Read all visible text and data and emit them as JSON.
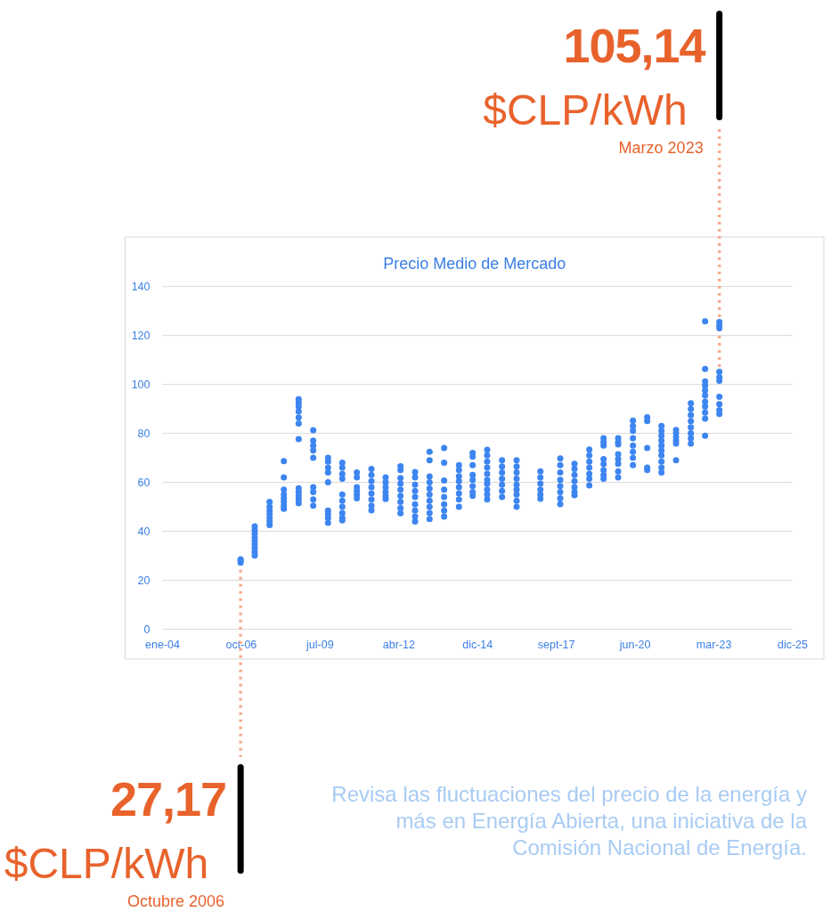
{
  "chart_data": {
    "type": "scatter",
    "title": "Precio Medio de Mercado",
    "color": "#3d85f0",
    "marker": "circle",
    "grid": "y",
    "xlim": [
      "2004-01-14",
      "2025-12-09"
    ],
    "xticks": [
      {
        "value": "2004-01-14",
        "label": "ene-04"
      },
      {
        "value": "2006-10-10",
        "label": "oct-06"
      },
      {
        "value": "2009-07-06",
        "label": "jul-09"
      },
      {
        "value": "2012-04-01",
        "label": "abr-12"
      },
      {
        "value": "2014-12-27",
        "label": "dic-14"
      },
      {
        "value": "2017-09-22",
        "label": "sept-17"
      },
      {
        "value": "2020-06-18",
        "label": "jun-20"
      },
      {
        "value": "2023-03-15",
        "label": "mar-23"
      },
      {
        "value": "2025-12-09",
        "label": "dic-25"
      }
    ],
    "ylim": [
      0,
      140
    ],
    "yticks": [
      0,
      20,
      40,
      60,
      80,
      100,
      120,
      140
    ],
    "x": [
      "2006-10-01",
      "2006-10-01",
      "2006-10-01",
      "2007-03-29",
      "2007-03-29",
      "2007-03-29",
      "2007-03-29",
      "2007-03-29",
      "2007-03-29",
      "2007-03-29",
      "2007-03-29",
      "2007-03-29",
      "2007-10-04",
      "2007-10-04",
      "2007-10-04",
      "2007-10-04",
      "2007-10-04",
      "2007-10-04",
      "2007-10-04",
      "2008-04-02",
      "2008-04-02",
      "2008-04-02",
      "2008-04-02",
      "2008-04-02",
      "2008-04-02",
      "2008-04-02",
      "2008-04-02",
      "2008-10-07",
      "2008-10-07",
      "2008-10-07",
      "2008-10-07",
      "2008-10-07",
      "2008-10-07",
      "2008-10-07",
      "2008-10-07",
      "2008-10-07",
      "2008-10-07",
      "2008-10-07",
      "2008-10-07",
      "2009-04-10",
      "2009-04-10",
      "2009-04-10",
      "2009-04-10",
      "2009-04-10",
      "2009-04-10",
      "2009-04-10",
      "2009-04-10",
      "2009-04-10",
      "2009-10-15",
      "2009-10-15",
      "2009-10-15",
      "2009-10-15",
      "2009-10-15",
      "2009-10-15",
      "2009-10-15",
      "2009-10-15",
      "2009-10-15",
      "2010-04-14",
      "2010-04-14",
      "2010-04-14",
      "2010-04-14",
      "2010-04-14",
      "2010-04-14",
      "2010-04-14",
      "2010-04-14",
      "2010-04-14",
      "2010-04-14",
      "2010-10-16",
      "2010-10-16",
      "2010-10-16",
      "2010-10-16",
      "2010-10-16",
      "2010-10-16",
      "2011-04-19",
      "2011-04-19",
      "2011-04-19",
      "2011-04-19",
      "2011-04-19",
      "2011-04-19",
      "2011-04-19",
      "2011-04-19",
      "2011-10-16",
      "2011-10-16",
      "2011-10-16",
      "2011-10-16",
      "2011-10-16",
      "2011-10-16",
      "2012-04-22",
      "2012-04-22",
      "2012-04-22",
      "2012-04-22",
      "2012-04-22",
      "2012-04-22",
      "2012-04-22",
      "2012-04-22",
      "2012-04-22",
      "2012-10-24",
      "2012-10-24",
      "2012-10-24",
      "2012-10-24",
      "2012-10-24",
      "2012-10-24",
      "2012-10-24",
      "2012-10-24",
      "2012-10-24",
      "2013-04-26",
      "2013-04-26",
      "2013-04-26",
      "2013-04-26",
      "2013-04-26",
      "2013-04-26",
      "2013-04-26",
      "2013-04-26",
      "2013-04-26",
      "2013-04-26",
      "2013-10-28",
      "2013-10-28",
      "2013-10-28",
      "2013-10-28",
      "2013-10-28",
      "2013-10-28",
      "2013-10-28",
      "2013-10-28",
      "2014-05-04",
      "2014-05-04",
      "2014-05-04",
      "2014-05-04",
      "2014-05-04",
      "2014-05-04",
      "2014-05-04",
      "2014-05-04",
      "2014-10-25",
      "2014-10-25",
      "2014-10-25",
      "2014-10-25",
      "2014-10-25",
      "2014-10-25",
      "2014-10-25",
      "2014-10-25",
      "2015-04-27",
      "2015-04-27",
      "2015-04-27",
      "2015-04-27",
      "2015-04-27",
      "2015-04-27",
      "2015-04-27",
      "2015-04-27",
      "2015-04-27",
      "2015-04-27",
      "2015-11-02",
      "2015-11-02",
      "2015-11-02",
      "2015-11-02",
      "2015-11-02",
      "2015-11-02",
      "2015-11-02",
      "2016-05-05",
      "2016-05-05",
      "2016-05-05",
      "2016-05-05",
      "2016-05-05",
      "2016-05-05",
      "2016-05-05",
      "2016-05-05",
      "2016-05-05",
      "2017-03-03",
      "2017-03-03",
      "2017-03-03",
      "2017-03-03",
      "2017-03-03",
      "2017-03-03",
      "2017-11-10",
      "2017-11-10",
      "2017-11-10",
      "2017-11-10",
      "2017-11-10",
      "2017-11-10",
      "2017-11-10",
      "2017-11-10",
      "2018-05-10",
      "2018-05-10",
      "2018-05-10",
      "2018-05-10",
      "2018-05-10",
      "2018-05-10",
      "2018-05-10",
      "2018-11-14",
      "2018-11-14",
      "2018-11-14",
      "2018-11-14",
      "2018-11-14",
      "2018-11-14",
      "2018-11-14",
      "2019-05-14",
      "2019-05-14",
      "2019-05-14",
      "2019-05-14",
      "2019-05-14",
      "2019-05-14",
      "2019-05-14",
      "2019-05-14",
      "2019-11-15",
      "2019-11-15",
      "2019-11-15",
      "2019-11-15",
      "2019-11-15",
      "2019-11-15",
      "2019-11-15",
      "2019-11-15",
      "2020-05-21",
      "2020-05-21",
      "2020-05-21",
      "2020-05-21",
      "2020-05-21",
      "2020-05-21",
      "2020-05-21",
      "2020-05-21",
      "2020-11-18",
      "2020-11-18",
      "2020-11-18",
      "2020-11-18",
      "2020-11-18",
      "2021-05-18",
      "2021-05-18",
      "2021-05-18",
      "2021-05-18",
      "2021-05-18",
      "2021-05-18",
      "2021-05-18",
      "2021-05-18",
      "2021-05-18",
      "2021-05-18",
      "2021-11-19",
      "2021-11-19",
      "2021-11-19",
      "2021-11-19",
      "2021-11-19",
      "2021-11-19",
      "2022-05-26",
      "2022-05-26",
      "2022-05-26",
      "2022-05-26",
      "2022-05-26",
      "2022-05-26",
      "2022-05-26",
      "2022-05-26",
      "2022-11-23",
      "2022-11-23",
      "2022-11-23",
      "2022-11-23",
      "2022-11-23",
      "2022-11-23",
      "2022-11-23",
      "2022-11-23",
      "2022-11-23",
      "2022-11-23",
      "2022-11-23",
      "2023-05-23",
      "2023-05-23",
      "2023-05-23",
      "2023-05-23",
      "2023-05-23",
      "2023-05-23",
      "2023-05-23",
      "2023-05-23",
      "2023-05-23",
      "2023-05-23"
    ],
    "values": [
      27.17,
      28,
      28.6,
      30.1,
      31.5,
      33,
      34.5,
      36,
      37.5,
      39,
      40.5,
      42,
      42.6,
      44,
      45.5,
      47,
      48.5,
      50,
      52,
      49.2,
      50.5,
      52,
      53.5,
      55,
      57,
      62,
      68.7,
      51.5,
      53,
      54.5,
      56,
      57.6,
      77.7,
      84,
      86.5,
      89,
      91,
      92.5,
      94,
      50.5,
      53,
      56,
      58,
      70,
      73,
      75,
      77,
      81.3,
      43.5,
      45.5,
      47,
      48.5,
      60,
      64,
      66,
      68.5,
      70,
      44.5,
      45.5,
      47.5,
      50,
      52.5,
      55,
      61.5,
      63.5,
      66,
      68,
      53.5,
      55,
      56.5,
      58,
      62,
      64,
      48.6,
      50.5,
      53,
      55.5,
      58,
      60.5,
      63,
      65.5,
      53.2,
      54.5,
      56,
      58,
      60,
      62,
      47.4,
      49.5,
      52,
      54.5,
      57,
      59.5,
      61.8,
      65,
      66.6,
      44,
      46,
      48.5,
      51,
      54,
      56.5,
      59,
      62,
      64.2,
      45,
      47.5,
      50,
      52.5,
      55,
      57.5,
      60,
      62.4,
      69,
      72.5,
      46,
      48.5,
      51,
      54,
      57,
      60.8,
      68,
      74,
      50,
      53,
      55.5,
      58,
      60.5,
      62.5,
      65,
      67,
      54.5,
      56,
      58.5,
      61,
      63,
      67,
      70.5,
      72,
      53,
      55,
      57,
      59.4,
      61,
      63.5,
      66,
      68.5,
      71,
      73.3,
      54,
      56.5,
      59,
      61.5,
      64,
      66.5,
      69,
      50,
      52.5,
      55,
      57,
      59,
      61.5,
      64,
      66.5,
      69,
      53.3,
      55,
      57,
      59.5,
      62,
      64.5,
      51.1,
      53.5,
      56,
      58.5,
      61,
      64,
      67,
      69.8,
      54.8,
      56,
      58,
      60.5,
      63,
      65.5,
      67.6,
      58.8,
      61.5,
      63.5,
      66,
      68.5,
      71,
      73.4,
      61.5,
      63,
      65,
      67.5,
      69.5,
      75,
      76.5,
      78,
      62,
      64.5,
      67.6,
      69.5,
      71.5,
      75.5,
      76.5,
      78,
      67,
      70,
      72.5,
      75,
      78,
      81,
      83,
      85.2,
      65,
      66,
      74,
      85,
      86.6,
      64,
      66,
      68.5,
      71,
      73,
      75,
      77,
      79,
      81,
      83,
      69,
      75.9,
      77,
      78.5,
      80,
      81.4,
      75.9,
      78,
      80,
      82.5,
      85,
      87.5,
      90,
      92.3,
      79,
      86,
      88.5,
      91,
      93,
      95.5,
      97.5,
      99.5,
      101.2,
      106.3,
      125.8,
      88,
      89.5,
      92,
      95,
      101.5,
      103,
      105.14,
      123,
      124,
      125.5
    ],
    "annotations": [
      "Revisa las fluctuaciones del precio de la energía y más en Energía Abierta, una iniciativa de la Comisión Nacional de Energía.",
      {
        "text": "105,14",
        "x": "2023-05-23",
        "y": 105.14
      },
      "$CLP/kWh",
      "Marzo 2023",
      {
        "text": "27,17",
        "x": "2006-10-01",
        "y": 27.17
      },
      "$CLP/kWh",
      "Octubre 2006"
    ]
  }
}
